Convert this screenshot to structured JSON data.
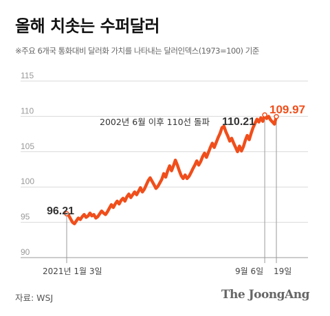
{
  "title": "올해 치솟는 수퍼달러",
  "subtitle": "※주요 6개국 통화대비 달러화 가치를 나타내는 달러인덱스(1973=100) 기준",
  "source": "자료: WSJ",
  "brand": "The JoongAng",
  "colors": {
    "line": "#f04e1b",
    "grid": "#d9d9d9",
    "axis": "#999999"
  },
  "chart_data": {
    "type": "line",
    "title": "올해 치솟는 수퍼달러",
    "ylim": [
      90,
      115
    ],
    "yticks": [
      90,
      95,
      100,
      105,
      110,
      115
    ],
    "xticks": [
      "2021년 1월 3일",
      "9월 6일",
      "19일"
    ],
    "annotations": {
      "start_value": "96.21",
      "peak_note": "2002년 6월 이후 110선 돌파",
      "peak_value": "110.21",
      "end_value": "109.97"
    },
    "series": [
      {
        "values": [
          96.21,
          96.0,
          95.5,
          95.0,
          94.8,
          95.2,
          95.6,
          95.4,
          95.8,
          96.1,
          95.7,
          95.9,
          96.3,
          95.9,
          96.1,
          95.6,
          95.8,
          96.2,
          96.6,
          96.3,
          96.1,
          96.5,
          97.0,
          97.5,
          97.1,
          97.6,
          98.0,
          97.6,
          98.1,
          98.4,
          98.0,
          98.6,
          99.0,
          98.5,
          98.9,
          99.3,
          98.9,
          99.4,
          99.9,
          99.3,
          99.7,
          100.3,
          100.9,
          101.3,
          100.8,
          100.3,
          99.8,
          100.1,
          100.6,
          101.1,
          101.9,
          101.4,
          102.3,
          103.0,
          102.3,
          103.0,
          103.8,
          103.1,
          102.3,
          101.6,
          101.2,
          101.7,
          101.2,
          101.5,
          102.0,
          102.6,
          103.1,
          103.7,
          103.1,
          103.6,
          104.3,
          104.8,
          104.2,
          104.9,
          105.6,
          106.2,
          105.6,
          106.3,
          107.0,
          107.6,
          108.4,
          108.6,
          107.8,
          107.2,
          106.5,
          106.9,
          106.2,
          105.6,
          105.0,
          105.8,
          105.1,
          105.7,
          106.6,
          107.3,
          106.7,
          107.6,
          108.4,
          109.0,
          109.6,
          109.2,
          109.8,
          109.3,
          110.21,
          109.7,
          110.0,
          109.5,
          109.2,
          108.9,
          109.97
        ]
      }
    ]
  }
}
